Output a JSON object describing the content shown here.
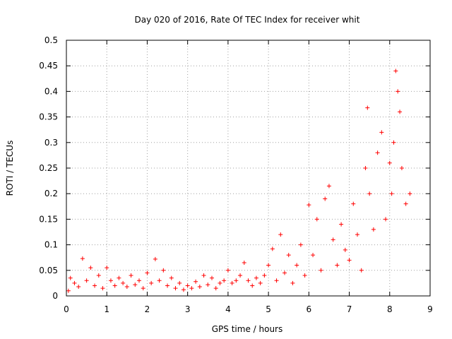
{
  "chart_data": {
    "type": "scatter",
    "title": "Day 020 of 2016, Rate Of TEC Index for receiver whit",
    "xlabel": "GPS time / hours",
    "ylabel": "ROTI / TECUs",
    "xlim": [
      0,
      9
    ],
    "ylim": [
      0,
      0.5
    ],
    "x_ticks": [
      "0",
      "1",
      "2",
      "3",
      "4",
      "5",
      "6",
      "7",
      "8",
      "9"
    ],
    "y_ticks": [
      "0",
      "0.05",
      "0.1",
      "0.15",
      "0.2",
      "0.25",
      "0.3",
      "0.35",
      "0.4",
      "0.45",
      "0.5"
    ],
    "grid": true,
    "marker": "+",
    "series": [
      {
        "name": "ROTI",
        "color": "#ff0000",
        "points": [
          [
            0.05,
            0.01
          ],
          [
            0.1,
            0.035
          ],
          [
            0.2,
            0.025
          ],
          [
            0.3,
            0.018
          ],
          [
            0.4,
            0.073
          ],
          [
            0.5,
            0.03
          ],
          [
            0.6,
            0.055
          ],
          [
            0.7,
            0.02
          ],
          [
            0.8,
            0.04
          ],
          [
            0.9,
            0.015
          ],
          [
            1.0,
            0.055
          ],
          [
            1.1,
            0.03
          ],
          [
            1.2,
            0.02
          ],
          [
            1.3,
            0.035
          ],
          [
            1.4,
            0.025
          ],
          [
            1.5,
            0.018
          ],
          [
            1.6,
            0.04
          ],
          [
            1.7,
            0.022
          ],
          [
            1.8,
            0.03
          ],
          [
            1.9,
            0.015
          ],
          [
            2.0,
            0.045
          ],
          [
            2.1,
            0.025
          ],
          [
            2.2,
            0.072
          ],
          [
            2.3,
            0.03
          ],
          [
            2.4,
            0.05
          ],
          [
            2.5,
            0.02
          ],
          [
            2.6,
            0.035
          ],
          [
            2.7,
            0.015
          ],
          [
            2.8,
            0.025
          ],
          [
            2.9,
            0.012
          ],
          [
            3.0,
            0.02
          ],
          [
            3.1,
            0.015
          ],
          [
            3.2,
            0.028
          ],
          [
            3.3,
            0.018
          ],
          [
            3.4,
            0.04
          ],
          [
            3.5,
            0.022
          ],
          [
            3.6,
            0.035
          ],
          [
            3.7,
            0.015
          ],
          [
            3.8,
            0.025
          ],
          [
            3.9,
            0.03
          ],
          [
            4.0,
            0.05
          ],
          [
            4.1,
            0.025
          ],
          [
            4.2,
            0.03
          ],
          [
            4.3,
            0.04
          ],
          [
            4.4,
            0.065
          ],
          [
            4.5,
            0.03
          ],
          [
            4.6,
            0.02
          ],
          [
            4.7,
            0.035
          ],
          [
            4.8,
            0.025
          ],
          [
            4.9,
            0.04
          ],
          [
            5.0,
            0.06
          ],
          [
            5.1,
            0.092
          ],
          [
            5.2,
            0.03
          ],
          [
            5.3,
            0.12
          ],
          [
            5.4,
            0.045
          ],
          [
            5.5,
            0.08
          ],
          [
            5.6,
            0.025
          ],
          [
            5.7,
            0.06
          ],
          [
            5.8,
            0.1
          ],
          [
            5.9,
            0.04
          ],
          [
            6.0,
            0.178
          ],
          [
            6.1,
            0.08
          ],
          [
            6.2,
            0.15
          ],
          [
            6.3,
            0.05
          ],
          [
            6.4,
            0.19
          ],
          [
            6.5,
            0.215
          ],
          [
            6.6,
            0.11
          ],
          [
            6.7,
            0.06
          ],
          [
            6.8,
            0.14
          ],
          [
            6.9,
            0.09
          ],
          [
            7.0,
            0.07
          ],
          [
            7.1,
            0.18
          ],
          [
            7.2,
            0.12
          ],
          [
            7.3,
            0.05
          ],
          [
            7.4,
            0.25
          ],
          [
            7.45,
            0.368
          ],
          [
            7.5,
            0.2
          ],
          [
            7.6,
            0.13
          ],
          [
            7.7,
            0.28
          ],
          [
            7.8,
            0.32
          ],
          [
            7.9,
            0.15
          ],
          [
            8.0,
            0.26
          ],
          [
            8.05,
            0.2
          ],
          [
            8.1,
            0.3
          ],
          [
            8.15,
            0.44
          ],
          [
            8.2,
            0.4
          ],
          [
            8.25,
            0.36
          ],
          [
            8.3,
            0.25
          ],
          [
            8.4,
            0.18
          ],
          [
            8.5,
            0.2
          ]
        ]
      }
    ]
  }
}
